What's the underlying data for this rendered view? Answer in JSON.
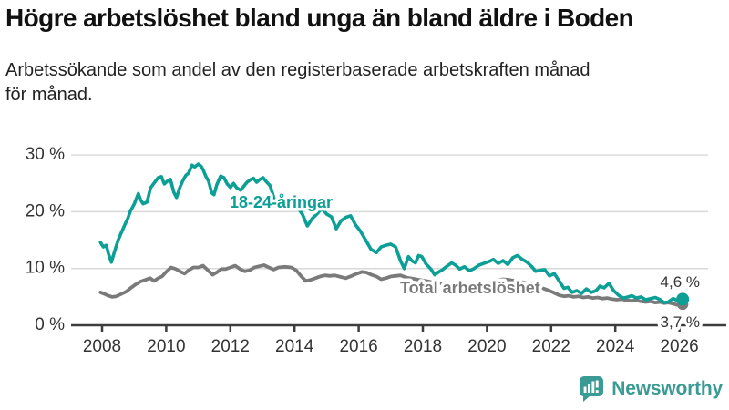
{
  "title": "Högre arbetslöshet bland unga än bland äldre i Boden",
  "subtitle": {
    "line1": "Arbetssökande som andel av den registerbaserade arbetskraften månad",
    "line2": "för månad."
  },
  "logo": {
    "text": "Newsworthy",
    "color": "#399b93",
    "icon": "bar-chart-speech-bubble"
  },
  "chart_data": {
    "type": "line",
    "title": "Högre arbetslöshet bland unga än bland äldre i Boden",
    "subtitle": "Arbetssökande som andel av den registerbaserade arbetskraften månad för månad.",
    "unit": "%",
    "xlim": [
      2007.9,
      2026.2
    ],
    "ylim": [
      0,
      30
    ],
    "grid": "horizontal",
    "legend_position": "inline-labels",
    "x_ticks": [
      "2008",
      "2010",
      "2012",
      "2014",
      "2016",
      "2018",
      "2020",
      "2022",
      "2024",
      "2026"
    ],
    "y_ticks": [
      {
        "value": 0,
        "label": "0 %"
      },
      {
        "value": 10,
        "label": "10 %"
      },
      {
        "value": 20,
        "label": "20 %"
      },
      {
        "value": 30,
        "label": "30 %"
      }
    ],
    "series": [
      {
        "name": "18-24-åringar",
        "color": "#0b9f95",
        "end_label": "4,6 %",
        "end_value": 4.6,
        "points": [
          [
            2007.95,
            14.6
          ],
          [
            2008.04,
            13.8
          ],
          [
            2008.13,
            14.1
          ],
          [
            2008.2,
            12.6
          ],
          [
            2008.29,
            11.1
          ],
          [
            2008.4,
            13.2
          ],
          [
            2008.5,
            15.0
          ],
          [
            2008.6,
            16.3
          ],
          [
            2008.71,
            17.7
          ],
          [
            2008.8,
            18.8
          ],
          [
            2008.89,
            20.2
          ],
          [
            2009.0,
            21.3
          ],
          [
            2009.13,
            23.2
          ],
          [
            2009.2,
            22.1
          ],
          [
            2009.28,
            21.4
          ],
          [
            2009.4,
            21.7
          ],
          [
            2009.51,
            24.2
          ],
          [
            2009.63,
            25.1
          ],
          [
            2009.75,
            26.0
          ],
          [
            2009.85,
            26.2
          ],
          [
            2009.94,
            24.9
          ],
          [
            2010.04,
            25.4
          ],
          [
            2010.13,
            25.7
          ],
          [
            2010.24,
            23.4
          ],
          [
            2010.32,
            22.5
          ],
          [
            2010.42,
            24.2
          ],
          [
            2010.51,
            25.4
          ],
          [
            2010.61,
            26.4
          ],
          [
            2010.7,
            26.8
          ],
          [
            2010.8,
            28.2
          ],
          [
            2010.89,
            27.9
          ],
          [
            2011.0,
            28.4
          ],
          [
            2011.09,
            28.0
          ],
          [
            2011.15,
            27.4
          ],
          [
            2011.24,
            26.2
          ],
          [
            2011.32,
            25.4
          ],
          [
            2011.42,
            23.3
          ],
          [
            2011.49,
            23.0
          ],
          [
            2011.58,
            24.8
          ],
          [
            2011.7,
            26.3
          ],
          [
            2011.8,
            26.0
          ],
          [
            2011.9,
            24.9
          ],
          [
            2012.0,
            24.3
          ],
          [
            2012.1,
            25.0
          ],
          [
            2012.2,
            24.2
          ],
          [
            2012.32,
            23.8
          ],
          [
            2012.42,
            24.5
          ],
          [
            2012.52,
            25.2
          ],
          [
            2012.62,
            25.6
          ],
          [
            2012.72,
            25.9
          ],
          [
            2012.82,
            25.2
          ],
          [
            2012.92,
            25.7
          ],
          [
            2013.02,
            26.0
          ],
          [
            2013.12,
            25.3
          ],
          [
            2013.24,
            24.6
          ],
          [
            2013.37,
            22.2
          ],
          [
            2013.5,
            21.4
          ],
          [
            2013.63,
            22.1
          ],
          [
            2013.76,
            22.4
          ],
          [
            2013.9,
            22.0
          ],
          [
            2014.0,
            21.6
          ],
          [
            2014.12,
            20.6
          ],
          [
            2014.25,
            19.5
          ],
          [
            2014.4,
            17.5
          ],
          [
            2014.55,
            18.8
          ],
          [
            2014.7,
            19.6
          ],
          [
            2014.85,
            20.6
          ],
          [
            2015.0,
            19.6
          ],
          [
            2015.15,
            19.1
          ],
          [
            2015.3,
            17.0
          ],
          [
            2015.45,
            18.4
          ],
          [
            2015.6,
            19.0
          ],
          [
            2015.75,
            19.3
          ],
          [
            2015.9,
            17.7
          ],
          [
            2016.05,
            16.6
          ],
          [
            2016.2,
            15.2
          ],
          [
            2016.38,
            13.4
          ],
          [
            2016.55,
            12.8
          ],
          [
            2016.7,
            13.8
          ],
          [
            2016.85,
            14.1
          ],
          [
            2017.0,
            14.3
          ],
          [
            2017.15,
            13.8
          ],
          [
            2017.3,
            11.4
          ],
          [
            2017.42,
            10.0
          ],
          [
            2017.55,
            12.1
          ],
          [
            2017.67,
            11.3
          ],
          [
            2017.77,
            11.0
          ],
          [
            2017.87,
            12.3
          ],
          [
            2017.97,
            12.1
          ],
          [
            2018.1,
            10.8
          ],
          [
            2018.25,
            9.9
          ],
          [
            2018.37,
            8.9
          ],
          [
            2018.5,
            9.4
          ],
          [
            2018.62,
            9.8
          ],
          [
            2018.75,
            10.4
          ],
          [
            2018.9,
            11.0
          ],
          [
            2019.02,
            10.6
          ],
          [
            2019.15,
            9.9
          ],
          [
            2019.3,
            10.3
          ],
          [
            2019.45,
            9.6
          ],
          [
            2019.6,
            10.0
          ],
          [
            2019.75,
            10.6
          ],
          [
            2019.9,
            10.9
          ],
          [
            2020.05,
            11.2
          ],
          [
            2020.2,
            11.6
          ],
          [
            2020.35,
            10.9
          ],
          [
            2020.5,
            11.4
          ],
          [
            2020.65,
            10.7
          ],
          [
            2020.8,
            11.9
          ],
          [
            2020.95,
            12.3
          ],
          [
            2021.1,
            11.6
          ],
          [
            2021.25,
            11.1
          ],
          [
            2021.4,
            10.3
          ],
          [
            2021.52,
            9.5
          ],
          [
            2021.65,
            9.7
          ],
          [
            2021.8,
            9.8
          ],
          [
            2021.95,
            8.7
          ],
          [
            2022.1,
            9.1
          ],
          [
            2022.25,
            7.8
          ],
          [
            2022.4,
            6.5
          ],
          [
            2022.52,
            6.7
          ],
          [
            2022.65,
            5.8
          ],
          [
            2022.8,
            6.1
          ],
          [
            2022.95,
            5.6
          ],
          [
            2023.1,
            6.4
          ],
          [
            2023.25,
            5.8
          ],
          [
            2023.4,
            6.1
          ],
          [
            2023.52,
            6.9
          ],
          [
            2023.65,
            6.6
          ],
          [
            2023.8,
            7.4
          ],
          [
            2023.95,
            6.1
          ],
          [
            2024.1,
            5.3
          ],
          [
            2024.25,
            4.8
          ],
          [
            2024.4,
            5.0
          ],
          [
            2024.52,
            5.2
          ],
          [
            2024.65,
            4.8
          ],
          [
            2024.8,
            5.0
          ],
          [
            2024.95,
            4.5
          ],
          [
            2025.1,
            4.7
          ],
          [
            2025.25,
            4.9
          ],
          [
            2025.4,
            4.5
          ],
          [
            2025.52,
            4.0
          ],
          [
            2025.65,
            4.1
          ],
          [
            2025.8,
            4.7
          ],
          [
            2025.92,
            4.4
          ],
          [
            2026.1,
            4.6
          ]
        ]
      },
      {
        "name": "Total arbetslöshet",
        "color": "#7a7a7a",
        "end_label": "3,7 %",
        "end_value": 3.7,
        "points": [
          [
            2007.95,
            5.8
          ],
          [
            2008.08,
            5.5
          ],
          [
            2008.2,
            5.2
          ],
          [
            2008.32,
            5.0
          ],
          [
            2008.45,
            5.1
          ],
          [
            2008.6,
            5.5
          ],
          [
            2008.75,
            5.9
          ],
          [
            2008.9,
            6.6
          ],
          [
            2009.05,
            7.2
          ],
          [
            2009.2,
            7.7
          ],
          [
            2009.35,
            8.0
          ],
          [
            2009.5,
            8.3
          ],
          [
            2009.62,
            7.8
          ],
          [
            2009.75,
            8.3
          ],
          [
            2009.87,
            8.6
          ],
          [
            2010.0,
            9.4
          ],
          [
            2010.15,
            10.2
          ],
          [
            2010.3,
            9.9
          ],
          [
            2010.45,
            9.4
          ],
          [
            2010.57,
            9.1
          ],
          [
            2010.7,
            9.7
          ],
          [
            2010.85,
            10.2
          ],
          [
            2011.0,
            10.2
          ],
          [
            2011.15,
            10.5
          ],
          [
            2011.3,
            9.7
          ],
          [
            2011.45,
            8.9
          ],
          [
            2011.6,
            9.4
          ],
          [
            2011.72,
            9.9
          ],
          [
            2011.85,
            9.9
          ],
          [
            2012.0,
            10.2
          ],
          [
            2012.15,
            10.5
          ],
          [
            2012.3,
            9.9
          ],
          [
            2012.45,
            9.5
          ],
          [
            2012.6,
            9.7
          ],
          [
            2012.75,
            10.2
          ],
          [
            2012.9,
            10.4
          ],
          [
            2013.05,
            10.6
          ],
          [
            2013.2,
            10.2
          ],
          [
            2013.35,
            9.8
          ],
          [
            2013.5,
            10.2
          ],
          [
            2013.7,
            10.3
          ],
          [
            2013.9,
            10.2
          ],
          [
            2014.05,
            9.7
          ],
          [
            2014.2,
            8.7
          ],
          [
            2014.35,
            7.8
          ],
          [
            2014.5,
            8.0
          ],
          [
            2014.65,
            8.3
          ],
          [
            2014.8,
            8.6
          ],
          [
            2014.95,
            8.8
          ],
          [
            2015.1,
            8.7
          ],
          [
            2015.25,
            8.8
          ],
          [
            2015.45,
            8.5
          ],
          [
            2015.6,
            8.3
          ],
          [
            2015.78,
            8.7
          ],
          [
            2015.95,
            9.1
          ],
          [
            2016.1,
            9.4
          ],
          [
            2016.25,
            9.3
          ],
          [
            2016.4,
            8.9
          ],
          [
            2016.55,
            8.6
          ],
          [
            2016.7,
            8.1
          ],
          [
            2016.85,
            8.3
          ],
          [
            2017.0,
            8.6
          ],
          [
            2017.15,
            8.7
          ],
          [
            2017.3,
            8.8
          ],
          [
            2017.5,
            8.4
          ],
          [
            2017.7,
            8.2
          ],
          [
            2017.9,
            8.0
          ],
          [
            2018.1,
            7.8
          ],
          [
            2018.3,
            7.6
          ],
          [
            2018.5,
            7.4
          ],
          [
            2018.7,
            7.2
          ],
          [
            2018.9,
            7.1
          ],
          [
            2019.1,
            7.0
          ],
          [
            2019.3,
            6.9
          ],
          [
            2019.5,
            6.8
          ],
          [
            2019.7,
            6.9
          ],
          [
            2019.9,
            7.1
          ],
          [
            2020.1,
            7.5
          ],
          [
            2020.3,
            7.9
          ],
          [
            2020.5,
            8.1
          ],
          [
            2020.7,
            8.0
          ],
          [
            2020.9,
            7.8
          ],
          [
            2021.1,
            7.6
          ],
          [
            2021.3,
            7.3
          ],
          [
            2021.5,
            7.0
          ],
          [
            2021.7,
            6.6
          ],
          [
            2021.9,
            6.2
          ],
          [
            2022.1,
            5.7
          ],
          [
            2022.25,
            5.3
          ],
          [
            2022.4,
            5.1
          ],
          [
            2022.55,
            5.2
          ],
          [
            2022.7,
            5.0
          ],
          [
            2022.85,
            5.1
          ],
          [
            2023.0,
            4.9
          ],
          [
            2023.15,
            5.0
          ],
          [
            2023.3,
            4.8
          ],
          [
            2023.45,
            4.9
          ],
          [
            2023.6,
            4.7
          ],
          [
            2023.75,
            4.8
          ],
          [
            2023.9,
            4.6
          ],
          [
            2024.05,
            4.5
          ],
          [
            2024.2,
            4.6
          ],
          [
            2024.35,
            4.4
          ],
          [
            2024.5,
            4.3
          ],
          [
            2024.65,
            4.4
          ],
          [
            2024.8,
            4.2
          ],
          [
            2024.95,
            4.1
          ],
          [
            2025.1,
            4.2
          ],
          [
            2025.25,
            4.0
          ],
          [
            2025.4,
            4.1
          ],
          [
            2025.52,
            3.9
          ],
          [
            2025.65,
            4.0
          ],
          [
            2025.8,
            3.8
          ],
          [
            2025.92,
            3.6
          ],
          [
            2026.1,
            3.7
          ]
        ]
      }
    ]
  }
}
